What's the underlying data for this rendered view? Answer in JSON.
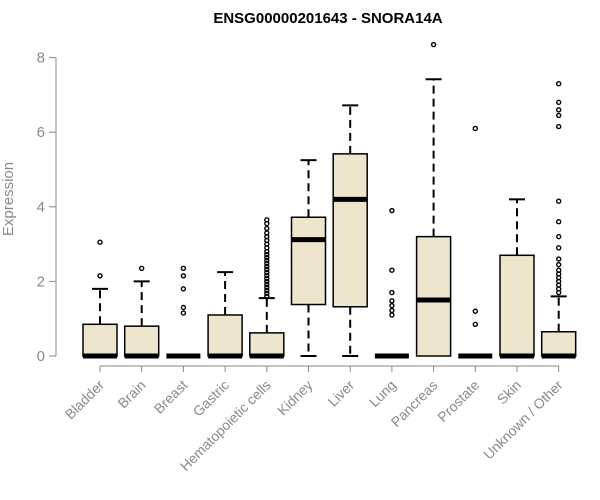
{
  "chart_data": {
    "type": "boxplot",
    "title": "ENSG00000201643 - SNORA14A",
    "xlabel": "",
    "ylabel": "Expression",
    "ylim": [
      0,
      8.4
    ],
    "yticks": [
      0,
      2,
      4,
      6,
      8
    ],
    "grid": false,
    "colors": {
      "box_fill": "#ede6cc",
      "stroke": "#000000",
      "axis": "#8a8a8a"
    },
    "categories": [
      "Bladder",
      "Brain",
      "Breast",
      "Gastric",
      "Hematopoietic cells",
      "Kidney",
      "Liver",
      "Lung",
      "Pancreas",
      "Prostate",
      "Skin",
      "Unknown / Other"
    ],
    "boxes": [
      {
        "name": "Bladder",
        "q1": 0,
        "median": 0,
        "q3": 0.85,
        "whisker_low": 0,
        "whisker_high": 1.8,
        "outliers": [
          2.15,
          3.05
        ]
      },
      {
        "name": "Brain",
        "q1": 0,
        "median": 0,
        "q3": 0.8,
        "whisker_low": 0,
        "whisker_high": 2.0,
        "outliers": [
          2.35
        ]
      },
      {
        "name": "Breast",
        "q1": 0,
        "median": 0,
        "q3": 0,
        "whisker_low": 0,
        "whisker_high": 0,
        "outliers": [
          1.15,
          1.3,
          1.8,
          2.15,
          2.35
        ]
      },
      {
        "name": "Gastric",
        "q1": 0,
        "median": 0,
        "q3": 1.1,
        "whisker_low": 0,
        "whisker_high": 2.25,
        "outliers": []
      },
      {
        "name": "Hematopoietic cells",
        "q1": 0,
        "median": 0,
        "q3": 0.62,
        "whisker_low": 0,
        "whisker_high": 1.55,
        "outliers": [
          1.6,
          1.68,
          1.76,
          1.84,
          1.92,
          2.0,
          2.08,
          2.16,
          2.24,
          2.32,
          2.4,
          2.48,
          2.56,
          2.64,
          2.72,
          2.8,
          2.9,
          3.0,
          3.1,
          3.2,
          3.3,
          3.42,
          3.55,
          3.65
        ]
      },
      {
        "name": "Kidney",
        "q1": 1.38,
        "median": 3.12,
        "q3": 3.72,
        "whisker_low": 0,
        "whisker_high": 5.25,
        "outliers": []
      },
      {
        "name": "Liver",
        "q1": 1.32,
        "median": 4.2,
        "q3": 5.42,
        "whisker_low": 0,
        "whisker_high": 6.72,
        "outliers": []
      },
      {
        "name": "Lung",
        "q1": 0,
        "median": 0,
        "q3": 0,
        "whisker_low": 0,
        "whisker_high": 0,
        "outliers": [
          1.1,
          1.22,
          1.35,
          1.48,
          1.7,
          2.3,
          3.9
        ]
      },
      {
        "name": "Pancreas",
        "q1": 0,
        "median": 1.5,
        "q3": 3.2,
        "whisker_low": 0,
        "whisker_high": 7.42,
        "outliers": [
          8.35
        ]
      },
      {
        "name": "Prostate",
        "q1": 0,
        "median": 0,
        "q3": 0,
        "whisker_low": 0,
        "whisker_high": 0,
        "outliers": [
          0.85,
          1.2,
          6.1
        ]
      },
      {
        "name": "Skin",
        "q1": 0,
        "median": 0,
        "q3": 2.7,
        "whisker_low": 0,
        "whisker_high": 4.2,
        "outliers": []
      },
      {
        "name": "Unknown / Other",
        "q1": 0,
        "median": 0,
        "q3": 0.65,
        "whisker_low": 0,
        "whisker_high": 1.6,
        "outliers": [
          1.7,
          1.8,
          1.9,
          2.0,
          2.1,
          2.2,
          2.3,
          2.45,
          2.6,
          2.9,
          3.2,
          3.6,
          4.15,
          6.15,
          6.45,
          6.6,
          6.8,
          7.3
        ]
      }
    ]
  }
}
